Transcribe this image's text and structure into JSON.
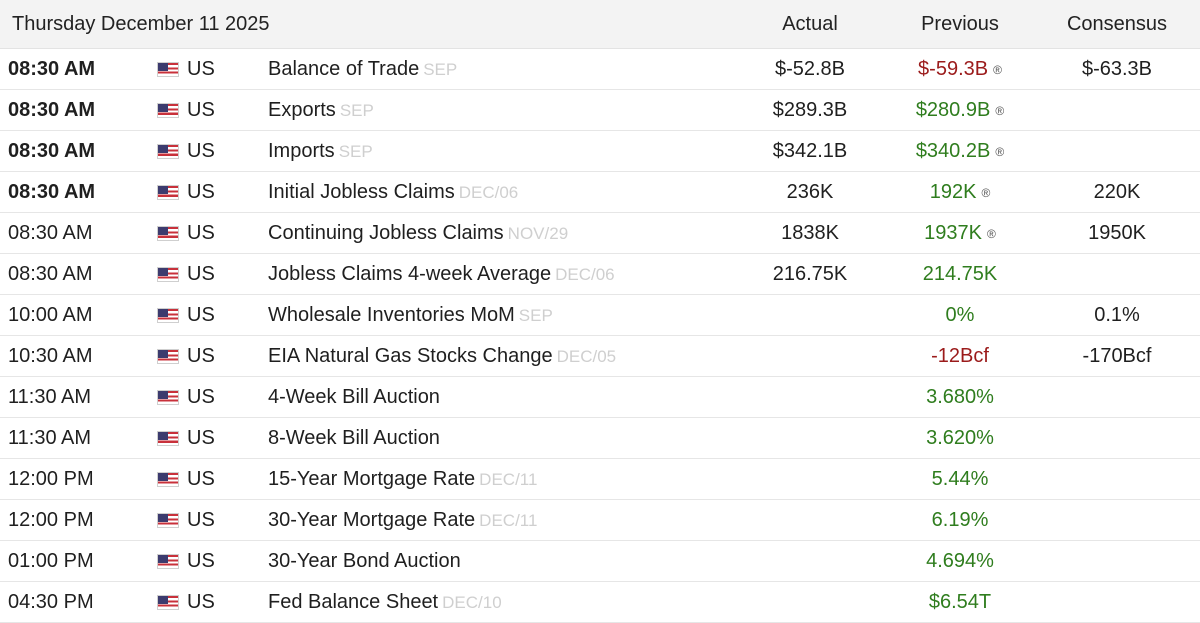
{
  "header": {
    "date": "Thursday December 11 2025",
    "actual": "Actual",
    "previous": "Previous",
    "consensus": "Consensus"
  },
  "rows": [
    {
      "time": "08:30 AM",
      "bold": true,
      "country": "US",
      "event": "Balance of Trade",
      "ref": "SEP",
      "actual": "$-52.8B",
      "previous": "$-59.3B",
      "prev_color": "red",
      "revised": true,
      "consensus": "$-63.3B"
    },
    {
      "time": "08:30 AM",
      "bold": true,
      "country": "US",
      "event": "Exports",
      "ref": "SEP",
      "actual": "$289.3B",
      "previous": "$280.9B",
      "prev_color": "green",
      "revised": true,
      "consensus": ""
    },
    {
      "time": "08:30 AM",
      "bold": true,
      "country": "US",
      "event": "Imports",
      "ref": "SEP",
      "actual": "$342.1B",
      "previous": "$340.2B",
      "prev_color": "green",
      "revised": true,
      "consensus": ""
    },
    {
      "time": "08:30 AM",
      "bold": true,
      "country": "US",
      "event": "Initial Jobless Claims",
      "ref": "DEC/06",
      "actual": "236K",
      "previous": "192K",
      "prev_color": "green",
      "revised": true,
      "consensus": "220K"
    },
    {
      "time": "08:30 AM",
      "bold": false,
      "country": "US",
      "event": "Continuing Jobless Claims",
      "ref": "NOV/29",
      "actual": "1838K",
      "previous": "1937K",
      "prev_color": "green",
      "revised": true,
      "consensus": "1950K"
    },
    {
      "time": "08:30 AM",
      "bold": false,
      "country": "US",
      "event": "Jobless Claims 4-week Average",
      "ref": "DEC/06",
      "actual": "216.75K",
      "previous": "214.75K",
      "prev_color": "green",
      "revised": false,
      "consensus": ""
    },
    {
      "time": "10:00 AM",
      "bold": false,
      "country": "US",
      "event": "Wholesale Inventories MoM",
      "ref": "SEP",
      "actual": "",
      "previous": "0%",
      "prev_color": "green",
      "revised": false,
      "consensus": "0.1%"
    },
    {
      "time": "10:30 AM",
      "bold": false,
      "country": "US",
      "event": "EIA Natural Gas Stocks Change",
      "ref": "DEC/05",
      "actual": "",
      "previous": "-12Bcf",
      "prev_color": "red",
      "revised": false,
      "consensus": "-170Bcf"
    },
    {
      "time": "11:30 AM",
      "bold": false,
      "country": "US",
      "event": "4-Week Bill Auction",
      "ref": "",
      "actual": "",
      "previous": "3.680%",
      "prev_color": "green",
      "revised": false,
      "consensus": ""
    },
    {
      "time": "11:30 AM",
      "bold": false,
      "country": "US",
      "event": "8-Week Bill Auction",
      "ref": "",
      "actual": "",
      "previous": "3.620%",
      "prev_color": "green",
      "revised": false,
      "consensus": ""
    },
    {
      "time": "12:00 PM",
      "bold": false,
      "country": "US",
      "event": "15-Year Mortgage Rate",
      "ref": "DEC/11",
      "actual": "",
      "previous": "5.44%",
      "prev_color": "green",
      "revised": false,
      "consensus": ""
    },
    {
      "time": "12:00 PM",
      "bold": false,
      "country": "US",
      "event": "30-Year Mortgage Rate",
      "ref": "DEC/11",
      "actual": "",
      "previous": "6.19%",
      "prev_color": "green",
      "revised": false,
      "consensus": ""
    },
    {
      "time": "01:00 PM",
      "bold": false,
      "country": "US",
      "event": "30-Year Bond Auction",
      "ref": "",
      "actual": "",
      "previous": "4.694%",
      "prev_color": "green",
      "revised": false,
      "consensus": ""
    },
    {
      "time": "04:30 PM",
      "bold": false,
      "country": "US",
      "event": "Fed Balance Sheet",
      "ref": "DEC/10",
      "actual": "",
      "previous": "$6.54T",
      "prev_color": "green",
      "revised": false,
      "consensus": ""
    }
  ],
  "revised_mark": "®",
  "colors": {
    "green": "#2f7d1e",
    "red": "#9b1b1b",
    "ref_gray": "#cfcfcf"
  }
}
